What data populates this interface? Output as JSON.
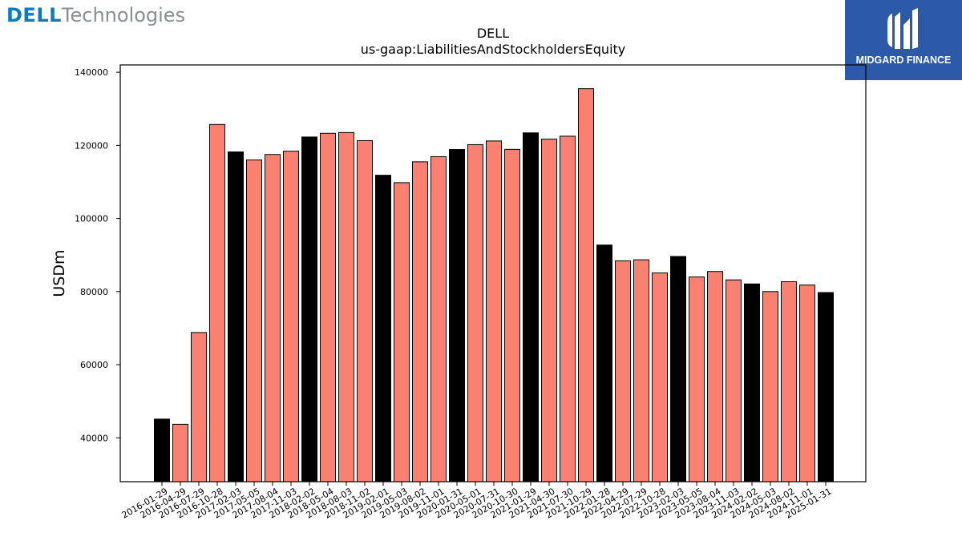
{
  "branding": {
    "dell_word": "DELL",
    "technologies_word": "Technologies",
    "midgard_label": "MIDGARD FINANCE",
    "dell_color": "#0a7ac1",
    "midgard_color": "#2d5aa8"
  },
  "chart_data": {
    "type": "bar",
    "title": "DELL",
    "subtitle": "us-gaap:LiabilitiesAndStockholdersEquity",
    "ylabel": "USDm",
    "xlabel": "",
    "ylim": [
      28000,
      142000
    ],
    "yticks": [
      40000,
      60000,
      80000,
      100000,
      120000,
      140000
    ],
    "grid": false,
    "colors": {
      "annual": "#000000",
      "quarterly": "#fa8072"
    },
    "categories": [
      "2016-01-29",
      "2016-04-29",
      "2016-07-29",
      "2016-10-28",
      "2017-02-03",
      "2017-05-05",
      "2017-08-04",
      "2017-11-03",
      "2018-02-02",
      "2018-05-04",
      "2018-08-03",
      "2018-11-02",
      "2019-02-01",
      "2019-05-03",
      "2019-08-02",
      "2019-11-01",
      "2020-01-31",
      "2020-05-01",
      "2020-07-31",
      "2020-10-30",
      "2021-01-29",
      "2021-04-30",
      "2021-07-30",
      "2021-10-29",
      "2022-01-28",
      "2022-04-29",
      "2022-07-29",
      "2022-10-28",
      "2023-02-03",
      "2023-05-05",
      "2023-08-04",
      "2023-11-03",
      "2024-02-02",
      "2024-05-03",
      "2024-08-02",
      "2024-11-01",
      "2025-01-31"
    ],
    "values": [
      45122,
      43700,
      68800,
      125700,
      118206,
      116000,
      117500,
      118400,
      122281,
      123300,
      123500,
      121300,
      111820,
      109800,
      115500,
      116900,
      118861,
      120200,
      121200,
      118900,
      123415,
      121700,
      122500,
      135500,
      92735,
      88400,
      88700,
      85100,
      89611,
      84000,
      85500,
      83200,
      82089,
      80000,
      82700,
      81800,
      79746
    ],
    "annual": [
      true,
      false,
      false,
      false,
      true,
      false,
      false,
      false,
      true,
      false,
      false,
      false,
      true,
      false,
      false,
      false,
      true,
      false,
      false,
      false,
      true,
      false,
      false,
      false,
      true,
      false,
      false,
      false,
      true,
      false,
      false,
      false,
      true,
      false,
      false,
      false,
      true
    ]
  }
}
